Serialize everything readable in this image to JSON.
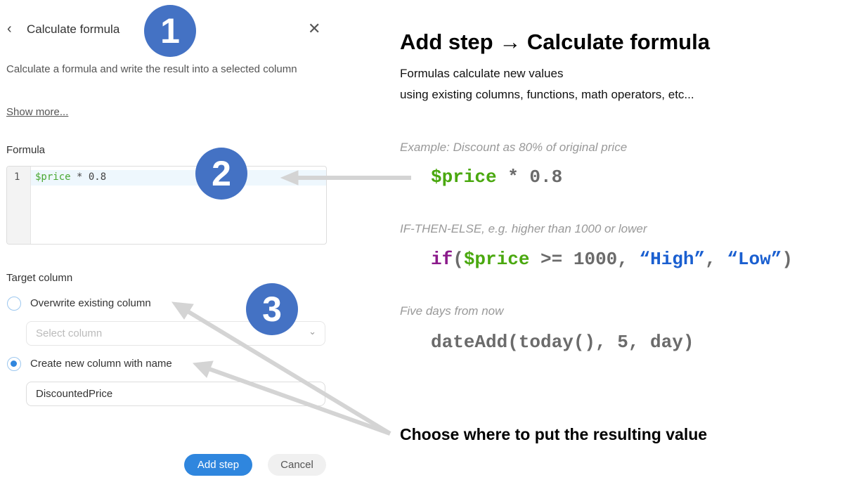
{
  "panel": {
    "title": "Calculate formula",
    "description": "Calculate a formula and write the result into a selected column",
    "show_more": "Show more...",
    "formula_label": "Formula",
    "line_number": "1",
    "formula_var": "$price",
    "formula_rest": " * 0.8",
    "target_label": "Target column",
    "option_overwrite": "Overwrite existing column",
    "select_placeholder": "Select column",
    "option_new": "Create new column with name",
    "new_column_value": "DiscountedPrice",
    "selected_option": "new",
    "add_step": "Add step",
    "cancel": "Cancel"
  },
  "badges": [
    "1",
    "2",
    "3"
  ],
  "help": {
    "heading": "Add step → Calculate formula",
    "subtitle_1": "Formulas calculate new values",
    "subtitle_2": "using existing columns, functions, math operators, etc...",
    "ex1_caption": "Example: Discount as 80% of original price",
    "ex1_var": "$price",
    "ex1_rest": " * 0.8",
    "ex2_caption": "IF-THEN-ELSE, e.g. higher than 1000 or lower",
    "ex2_if": "if",
    "ex2_open": "(",
    "ex2_var": "$price",
    "ex2_mid": " >= 1000, ",
    "ex2_high": "“High”",
    "ex2_comma": ", ",
    "ex2_low": "“Low”",
    "ex2_close": ")",
    "ex3_caption": "Five days from now",
    "ex3_code": "dateAdd(today(), 5, day)",
    "choose": "Choose where to put the resulting value"
  },
  "colors": {
    "badge": "#4472c4",
    "accent": "#2f86de",
    "var": "#4aa832"
  }
}
